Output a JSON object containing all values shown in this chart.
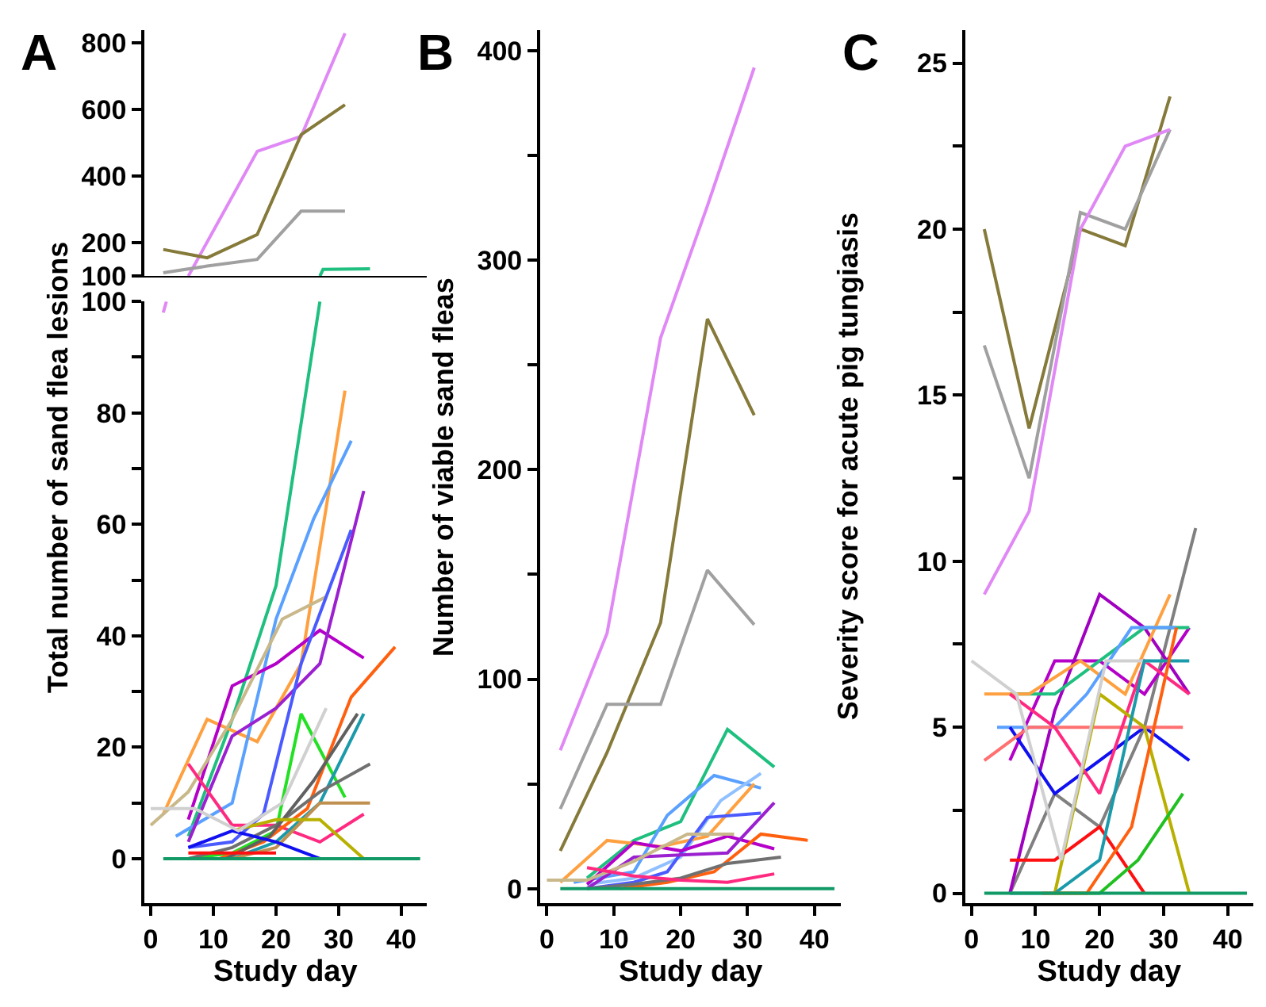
{
  "chart_data": [
    {
      "type": "line",
      "title": "A",
      "xlim": [
        -1,
        44
      ],
      "xticks": [
        0,
        10,
        20,
        30,
        40
      ],
      "ylim": [
        100,
        840
      ],
      "yticks": [
        100,
        200,
        400,
        600,
        800
      ],
      "tick_labels": "y",
      "series": [
        {
          "color": "#e088f5",
          "x": [
            6,
            17,
            24,
            31
          ],
          "values": [
            100,
            475,
            520,
            830
          ]
        },
        {
          "color": "#857a3a",
          "x": [
            2,
            9,
            17,
            24,
            31
          ],
          "values": [
            180,
            155,
            225,
            525,
            615
          ]
        },
        {
          "color": "#a0a0a0",
          "x": [
            2,
            9,
            17,
            24,
            31
          ],
          "values": [
            110,
            130,
            150,
            295,
            295
          ]
        },
        {
          "color": "#1fbf7f",
          "x": [
            27,
            27.5,
            35
          ],
          "values": [
            100,
            120,
            122
          ]
        }
      ]
    },
    {
      "type": "line",
      "xlabel": "Study day",
      "ylabel": "Total number of sand flea lesions",
      "xlim": [
        -1,
        44
      ],
      "xticks": [
        0,
        10,
        20,
        30,
        40
      ],
      "ylim": [
        -8,
        100
      ],
      "yticks": [
        0,
        {
          "value": 10,
          "label": null
        },
        20,
        {
          "value": 30,
          "label": null
        },
        40,
        {
          "value": 50,
          "label": null
        },
        60,
        {
          "value": 70,
          "label": null
        },
        80,
        {
          "value": 90,
          "label": null
        },
        100
      ],
      "series": [
        {
          "color": "#e088f5",
          "x": [
            2,
            2.5
          ],
          "values": [
            98,
            100
          ]
        },
        {
          "color": "#1fbf7f",
          "x": [
            6,
            13,
            20,
            27
          ],
          "values": [
            4,
            25,
            49,
            100
          ]
        },
        {
          "color": "#ffa040",
          "x": [
            2,
            9,
            17,
            24,
            31
          ],
          "values": [
            8,
            25,
            21,
            35,
            84
          ]
        },
        {
          "color": "#5aa0ff",
          "x": [
            4,
            13,
            20,
            26,
            32
          ],
          "values": [
            4,
            10,
            43,
            61,
            75
          ]
        },
        {
          "color": "#b400c8",
          "x": [
            6,
            13,
            20,
            27,
            34
          ],
          "values": [
            7,
            31,
            35,
            41,
            36
          ]
        },
        {
          "color": "#9a20d0",
          "x": [
            6,
            13,
            20,
            27,
            34
          ],
          "values": [
            3,
            22,
            27,
            35,
            66
          ]
        },
        {
          "color": "#c8b88a",
          "x": [
            0,
            6,
            13,
            21,
            28
          ],
          "values": [
            6,
            12,
            25,
            43,
            47
          ]
        },
        {
          "color": "#4a5aff",
          "x": [
            6,
            13,
            18,
            24,
            32
          ],
          "values": [
            2,
            3,
            8,
            35,
            59
          ]
        },
        {
          "color": "#ff2a80",
          "x": [
            6,
            13,
            20,
            27,
            34
          ],
          "values": [
            17,
            6,
            6,
            3,
            8
          ]
        },
        {
          "color": "#22e022",
          "x": [
            6,
            13,
            20,
            24,
            31
          ],
          "values": [
            0,
            1,
            5,
            26,
            11
          ]
        },
        {
          "color": "#ff6010",
          "x": [
            11,
            18,
            25,
            32,
            39
          ],
          "values": [
            0,
            3,
            9,
            29,
            38
          ]
        },
        {
          "color": "#1a9aaa",
          "x": [
            6,
            13,
            20,
            27,
            34
          ],
          "values": [
            0,
            0,
            3,
            10,
            26
          ]
        },
        {
          "color": "#707070",
          "x": [
            6,
            13,
            20,
            27,
            35
          ],
          "values": [
            0,
            2,
            6,
            12,
            17
          ]
        },
        {
          "color": "#606060",
          "x": [
            12,
            19,
            26,
            33
          ],
          "values": [
            0,
            4,
            14,
            26
          ]
        },
        {
          "color": "#c09050",
          "x": [
            13,
            20,
            27,
            35
          ],
          "values": [
            0,
            2,
            10,
            10
          ]
        },
        {
          "color": "#b8b000",
          "x": [
            13,
            20,
            27,
            34
          ],
          "values": [
            5,
            7,
            7,
            0
          ]
        },
        {
          "color": "#1010f0",
          "x": [
            6,
            13,
            20,
            27
          ],
          "values": [
            2,
            5,
            3,
            0
          ]
        },
        {
          "color": "#ff1010",
          "x": [
            6,
            13,
            20
          ],
          "values": [
            1,
            1,
            1
          ]
        },
        {
          "color": "#d0d0d0",
          "x": [
            0,
            7,
            14,
            21,
            28
          ],
          "values": [
            9,
            9,
            5,
            10,
            27
          ]
        },
        {
          "color": "#119966",
          "x": [
            2,
            13,
            22,
            43
          ],
          "values": [
            0,
            0,
            0,
            0
          ]
        }
      ]
    },
    {
      "type": "line",
      "title": "B",
      "xlabel": "Study day",
      "ylabel": "Number of viable sand fleas",
      "xlim": [
        -1,
        44
      ],
      "xticks": [
        0,
        10,
        20,
        30,
        40
      ],
      "ylim": [
        -7,
        410
      ],
      "yticks": [
        0,
        {
          "value": 50,
          "label": null
        },
        100,
        {
          "value": 150,
          "label": null
        },
        200,
        {
          "value": 250,
          "label": null
        },
        300,
        {
          "value": 350,
          "label": null
        },
        400
      ],
      "series": [
        {
          "color": "#e088f5",
          "x": [
            2,
            9,
            17,
            24,
            31
          ],
          "values": [
            66,
            122,
            263,
            326,
            392
          ]
        },
        {
          "color": "#857a3a",
          "x": [
            2,
            9,
            17,
            24,
            31
          ],
          "values": [
            18,
            65,
            127,
            272,
            226
          ]
        },
        {
          "color": "#a0a0a0",
          "x": [
            2,
            9,
            17,
            24,
            31
          ],
          "values": [
            38,
            88,
            88,
            152,
            126
          ]
        },
        {
          "color": "#1fbf7f",
          "x": [
            6,
            13,
            20,
            27,
            34
          ],
          "values": [
            5,
            23,
            32,
            76,
            58
          ]
        },
        {
          "color": "#5aa0ff",
          "x": [
            4,
            13,
            18,
            25,
            32
          ],
          "values": [
            3,
            8,
            35,
            54,
            48
          ]
        },
        {
          "color": "#90c0ff",
          "x": [
            6,
            13,
            20,
            26,
            32
          ],
          "values": [
            2,
            5,
            15,
            42,
            55
          ]
        },
        {
          "color": "#ffa040",
          "x": [
            2,
            9,
            17,
            24,
            31
          ],
          "values": [
            3,
            23,
            20,
            25,
            50
          ]
        },
        {
          "color": "#4a5aff",
          "x": [
            6,
            13,
            18,
            24,
            32
          ],
          "values": [
            0,
            3,
            8,
            34,
            36
          ]
        },
        {
          "color": "#b400c8",
          "x": [
            6,
            13,
            20,
            27,
            34
          ],
          "values": [
            2,
            22,
            18,
            25,
            19
          ]
        },
        {
          "color": "#9a20d0",
          "x": [
            6,
            13,
            20,
            27,
            34
          ],
          "values": [
            0,
            15,
            16,
            17,
            41
          ]
        },
        {
          "color": "#ff6010",
          "x": [
            11,
            18,
            25,
            32,
            39
          ],
          "values": [
            0,
            3,
            8,
            26,
            23
          ]
        },
        {
          "color": "#c8b88a",
          "x": [
            0,
            6,
            13,
            21,
            28
          ],
          "values": [
            4,
            4,
            13,
            26,
            26
          ]
        },
        {
          "color": "#707070",
          "x": [
            6,
            13,
            20,
            27,
            35
          ],
          "values": [
            0,
            2,
            5,
            12,
            15
          ]
        },
        {
          "color": "#ff2a80",
          "x": [
            6,
            13,
            20,
            27,
            34
          ],
          "values": [
            10,
            6,
            4,
            3,
            7
          ]
        },
        {
          "color": "#119966",
          "x": [
            2,
            13,
            22,
            43
          ],
          "values": [
            0,
            0,
            0,
            0
          ]
        }
      ]
    },
    {
      "type": "line",
      "title": "C",
      "xlabel": "Study day",
      "ylabel": "Severity score for acute pig tungiasis",
      "xlim": [
        -1,
        44
      ],
      "xticks": [
        0,
        10,
        20,
        30,
        40
      ],
      "ylim": [
        -0.3,
        26
      ],
      "yticks": [
        0,
        {
          "value": 2.5,
          "label": null
        },
        5,
        {
          "value": 7.5,
          "label": null
        },
        10,
        {
          "value": 12.5,
          "label": null
        },
        15,
        {
          "value": 17.5,
          "label": null
        },
        20,
        {
          "value": 22.5,
          "label": null
        },
        25
      ],
      "series": [
        {
          "color": "#857a3a",
          "x": [
            2,
            9,
            17,
            24,
            31
          ],
          "values": [
            20,
            14,
            20,
            19.5,
            24
          ]
        },
        {
          "color": "#a0a0a0",
          "x": [
            2,
            9,
            17,
            24,
            31
          ],
          "values": [
            16.5,
            12.5,
            20.5,
            20,
            23
          ]
        },
        {
          "color": "#e088f5",
          "x": [
            2,
            9,
            17,
            24,
            31
          ],
          "values": [
            9,
            11.5,
            20,
            22.5,
            23
          ]
        },
        {
          "color": "#808080",
          "x": [
            6,
            13,
            20,
            27,
            35
          ],
          "values": [
            0,
            3,
            2,
            5,
            11
          ]
        },
        {
          "color": "#b400c8",
          "x": [
            6,
            13,
            20,
            27,
            34
          ],
          "values": [
            4,
            7,
            7,
            6,
            8
          ]
        },
        {
          "color": "#a000c0",
          "x": [
            6,
            13,
            20,
            27,
            34
          ],
          "values": [
            0,
            5.5,
            9,
            8,
            6
          ]
        },
        {
          "color": "#1fbf7f",
          "x": [
            6,
            13,
            20,
            27,
            34
          ],
          "values": [
            6,
            6,
            7,
            8,
            8
          ]
        },
        {
          "color": "#ffa040",
          "x": [
            2,
            9,
            17,
            24,
            31
          ],
          "values": [
            6,
            6,
            7,
            6,
            9
          ]
        },
        {
          "color": "#5aa0ff",
          "x": [
            4,
            13,
            18,
            25,
            32
          ],
          "values": [
            5,
            5,
            6,
            8,
            8
          ]
        },
        {
          "color": "#1010f0",
          "x": [
            6,
            13,
            20,
            27,
            34
          ],
          "values": [
            5,
            3,
            4,
            5,
            4
          ]
        },
        {
          "color": "#ff7070",
          "x": [
            2,
            9,
            17,
            24,
            33
          ],
          "values": [
            4,
            5,
            5,
            5,
            5
          ]
        },
        {
          "color": "#ff2a80",
          "x": [
            6,
            13,
            20,
            27,
            34
          ],
          "values": [
            6,
            5,
            3,
            7,
            6
          ]
        },
        {
          "color": "#b8b000",
          "x": [
            13,
            20,
            27,
            34
          ],
          "values": [
            0,
            6,
            5,
            0
          ]
        },
        {
          "color": "#ff1010",
          "x": [
            6,
            13,
            20,
            27
          ],
          "values": [
            1,
            1,
            2,
            0
          ]
        },
        {
          "color": "#d0d0d0",
          "x": [
            0,
            7,
            14,
            21,
            28
          ],
          "values": [
            7,
            6,
            1,
            7,
            7
          ]
        },
        {
          "color": "#20c020",
          "x": [
            13,
            20,
            26,
            33
          ],
          "values": [
            0,
            0,
            1,
            3
          ]
        },
        {
          "color": "#1a9aaa",
          "x": [
            6,
            13,
            20,
            27,
            34
          ],
          "values": [
            0,
            0,
            1,
            7,
            7
          ]
        },
        {
          "color": "#ff6010",
          "x": [
            11,
            18,
            25,
            32
          ],
          "values": [
            0,
            0,
            2,
            8
          ]
        },
        {
          "color": "#119966",
          "x": [
            2,
            13,
            22,
            43
          ],
          "values": [
            0,
            0,
            0,
            0
          ]
        }
      ]
    }
  ]
}
